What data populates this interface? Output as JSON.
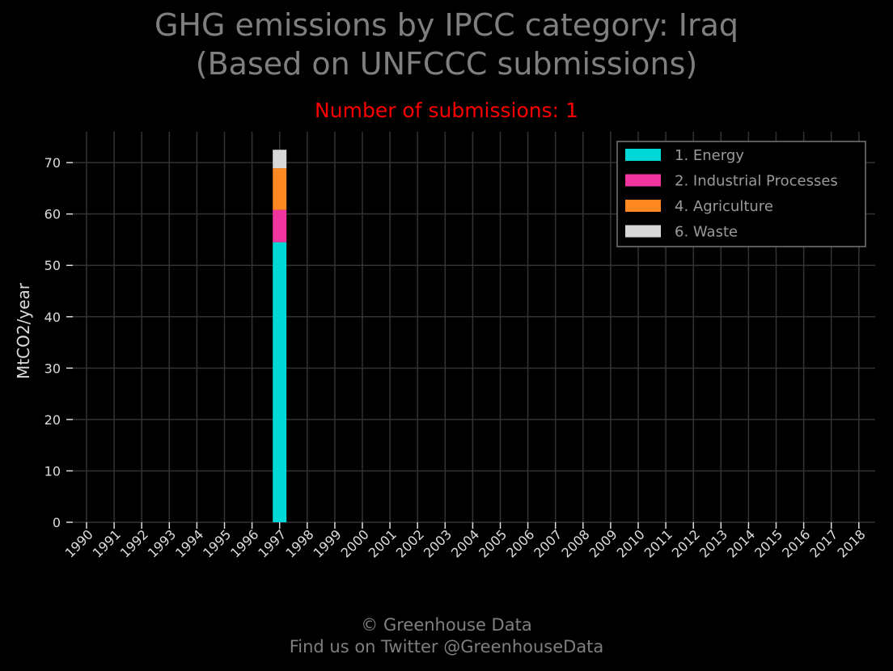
{
  "title_line1": "GHG emissions by IPCC category: Iraq",
  "title_line2": "(Based on UNFCCC submissions)",
  "subtitle": "Number of submissions: 1",
  "footer_line1": "© Greenhouse Data",
  "footer_line2": "Find us on Twitter @GreenhouseData",
  "colors": {
    "background": "#000000",
    "grid": "#333333",
    "title": "#7f7f7f",
    "subtitle": "#ff0000"
  },
  "chart_data": {
    "type": "bar",
    "stacked": true,
    "ylabel": "MtCO2/year",
    "ylim": [
      0,
      76
    ],
    "yticks": [
      0,
      10,
      20,
      30,
      40,
      50,
      60,
      70
    ],
    "grid": true,
    "legend_position": "top-right",
    "categories": [
      "1990",
      "1991",
      "1992",
      "1993",
      "1994",
      "1995",
      "1996",
      "1997",
      "1998",
      "1999",
      "2000",
      "2001",
      "2002",
      "2003",
      "2004",
      "2005",
      "2006",
      "2007",
      "2008",
      "2009",
      "2010",
      "2011",
      "2012",
      "2013",
      "2014",
      "2015",
      "2016",
      "2017",
      "2018"
    ],
    "series": [
      {
        "name": "1. Energy",
        "color": "#00d8d8",
        "values": [
          0,
          0,
          0,
          0,
          0,
          0,
          0,
          54.5,
          0,
          0,
          0,
          0,
          0,
          0,
          0,
          0,
          0,
          0,
          0,
          0,
          0,
          0,
          0,
          0,
          0,
          0,
          0,
          0,
          0
        ]
      },
      {
        "name": "2. Industrial Processes",
        "color": "#f0359f",
        "values": [
          0,
          0,
          0,
          0,
          0,
          0,
          0,
          6.3,
          0,
          0,
          0,
          0,
          0,
          0,
          0,
          0,
          0,
          0,
          0,
          0,
          0,
          0,
          0,
          0,
          0,
          0,
          0,
          0,
          0
        ]
      },
      {
        "name": "4. Agriculture",
        "color": "#ff8822",
        "values": [
          0,
          0,
          0,
          0,
          0,
          0,
          0,
          8.1,
          0,
          0,
          0,
          0,
          0,
          0,
          0,
          0,
          0,
          0,
          0,
          0,
          0,
          0,
          0,
          0,
          0,
          0,
          0,
          0,
          0
        ]
      },
      {
        "name": "6. Waste",
        "color": "#d8d8d8",
        "values": [
          0,
          0,
          0,
          0,
          0,
          0,
          0,
          3.6,
          0,
          0,
          0,
          0,
          0,
          0,
          0,
          0,
          0,
          0,
          0,
          0,
          0,
          0,
          0,
          0,
          0,
          0,
          0,
          0,
          0
        ]
      }
    ]
  }
}
